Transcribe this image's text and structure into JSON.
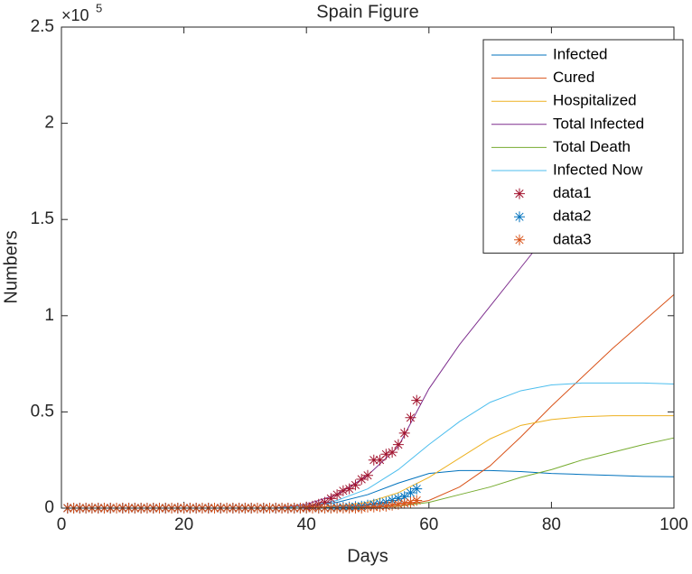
{
  "chart_data": {
    "type": "line",
    "title": "Spain Figure",
    "x_label": "Days",
    "y_label": "Numbers",
    "y_exponent": {
      "base": "×10",
      "power": 5
    },
    "xlim": [
      0,
      100
    ],
    "xticks": [
      0,
      20,
      40,
      60,
      80,
      100
    ],
    "ylim": [
      0,
      2.5
    ],
    "yticks": [
      0,
      0.5,
      1,
      1.5,
      2,
      2.5
    ],
    "legend_position": "upper right",
    "x": [
      0,
      5,
      10,
      15,
      20,
      25,
      30,
      35,
      40,
      45,
      50,
      55,
      60,
      65,
      70,
      75,
      80,
      85,
      90,
      95,
      100
    ],
    "series": [
      {
        "name": "Infected",
        "color": "#0072BD",
        "values": [
          0,
          0,
          0,
          0,
          0,
          0,
          0,
          0,
          0.01,
          0.03,
          0.07,
          0.13,
          0.18,
          0.195,
          0.195,
          0.19,
          0.18,
          0.175,
          0.17,
          0.165,
          0.163
        ]
      },
      {
        "name": "Cured",
        "color": "#D95319",
        "values": [
          0,
          0,
          0,
          0,
          0,
          0,
          0,
          0,
          0,
          0,
          0.005,
          0.01,
          0.04,
          0.11,
          0.22,
          0.37,
          0.53,
          0.68,
          0.83,
          0.97,
          1.11
        ]
      },
      {
        "name": "Hospitalized",
        "color": "#EDB120",
        "values": [
          0,
          0,
          0,
          0,
          0,
          0,
          0,
          0,
          0,
          0.01,
          0.03,
          0.08,
          0.16,
          0.26,
          0.36,
          0.43,
          0.46,
          0.475,
          0.48,
          0.48,
          0.48
        ]
      },
      {
        "name": "Total Infected",
        "color": "#7E2F8E",
        "values": [
          0,
          0,
          0,
          0,
          0,
          0,
          0,
          0,
          0.02,
          0.07,
          0.17,
          0.32,
          0.62,
          0.85,
          1.05,
          1.25,
          1.45,
          1.64,
          1.81,
          1.97,
          2.12
        ]
      },
      {
        "name": "Total Death",
        "color": "#77AC30",
        "values": [
          0,
          0,
          0,
          0,
          0,
          0,
          0,
          0,
          0,
          0,
          0.005,
          0.01,
          0.03,
          0.07,
          0.11,
          0.16,
          0.2,
          0.25,
          0.29,
          0.33,
          0.365
        ]
      },
      {
        "name": "Infected Now",
        "color": "#4DBEEE",
        "values": [
          0,
          0,
          0,
          0,
          0,
          0,
          0,
          0,
          0.01,
          0.04,
          0.1,
          0.2,
          0.33,
          0.45,
          0.55,
          0.61,
          0.64,
          0.65,
          0.65,
          0.65,
          0.645
        ]
      },
      {
        "name": "data1",
        "type": "scatter",
        "color": "#A2142F",
        "x": [
          1,
          2,
          3,
          4,
          5,
          6,
          7,
          8,
          9,
          10,
          11,
          12,
          13,
          14,
          15,
          16,
          17,
          18,
          19,
          20,
          21,
          22,
          23,
          24,
          25,
          26,
          27,
          28,
          29,
          30,
          31,
          32,
          33,
          34,
          35,
          36,
          37,
          38,
          39,
          40,
          41,
          42,
          43,
          44,
          45,
          46,
          47,
          48,
          49,
          50,
          51,
          52,
          53,
          54,
          55,
          56,
          57,
          58
        ],
        "values": [
          0,
          0,
          0,
          0,
          0,
          0,
          0,
          0,
          0,
          0,
          0,
          0,
          0,
          0,
          0,
          0,
          0,
          0,
          0,
          0,
          0,
          0,
          0,
          0,
          0,
          0,
          0,
          0,
          0,
          0,
          0,
          0,
          0,
          0,
          0,
          0,
          0,
          0,
          0,
          0.005,
          0.01,
          0.02,
          0.03,
          0.05,
          0.07,
          0.09,
          0.1,
          0.12,
          0.15,
          0.17,
          0.25,
          0.25,
          0.28,
          0.29,
          0.33,
          0.39,
          0.47,
          0.56
        ]
      },
      {
        "name": "data2",
        "type": "scatter",
        "color": "#0072BD",
        "x": [
          1,
          2,
          3,
          4,
          5,
          6,
          7,
          8,
          9,
          10,
          11,
          12,
          13,
          14,
          15,
          16,
          17,
          18,
          19,
          20,
          21,
          22,
          23,
          24,
          25,
          26,
          27,
          28,
          29,
          30,
          31,
          32,
          33,
          34,
          35,
          36,
          37,
          38,
          39,
          40,
          41,
          42,
          43,
          44,
          45,
          46,
          47,
          48,
          49,
          50,
          51,
          52,
          53,
          54,
          55,
          56,
          57,
          58
        ],
        "values": [
          0,
          0,
          0,
          0,
          0,
          0,
          0,
          0,
          0,
          0,
          0,
          0,
          0,
          0,
          0,
          0,
          0,
          0,
          0,
          0,
          0,
          0,
          0,
          0,
          0,
          0,
          0,
          0,
          0,
          0,
          0,
          0,
          0,
          0,
          0,
          0,
          0,
          0,
          0,
          0,
          0,
          0,
          0,
          0.003,
          0.004,
          0.005,
          0.006,
          0.008,
          0.01,
          0.015,
          0.02,
          0.025,
          0.03,
          0.04,
          0.05,
          0.06,
          0.08,
          0.1
        ]
      },
      {
        "name": "data3",
        "type": "scatter",
        "color": "#D95319",
        "x": [
          1,
          2,
          3,
          4,
          5,
          6,
          7,
          8,
          9,
          10,
          11,
          12,
          13,
          14,
          15,
          16,
          17,
          18,
          19,
          20,
          21,
          22,
          23,
          24,
          25,
          26,
          27,
          28,
          29,
          30,
          31,
          32,
          33,
          34,
          35,
          36,
          37,
          38,
          39,
          40,
          41,
          42,
          43,
          44,
          45,
          46,
          47,
          48,
          49,
          50,
          51,
          52,
          53,
          54,
          55,
          56,
          57,
          58
        ],
        "values": [
          0,
          0,
          0,
          0,
          0,
          0,
          0,
          0,
          0,
          0,
          0,
          0,
          0,
          0,
          0,
          0,
          0,
          0,
          0,
          0,
          0,
          0,
          0,
          0,
          0,
          0,
          0,
          0,
          0,
          0,
          0,
          0,
          0,
          0,
          0,
          0,
          0,
          0,
          0,
          0,
          0,
          0,
          0,
          0,
          0,
          0,
          0,
          0,
          0,
          0.005,
          0.006,
          0.008,
          0.01,
          0.015,
          0.02,
          0.025,
          0.03,
          0.04
        ]
      }
    ]
  }
}
